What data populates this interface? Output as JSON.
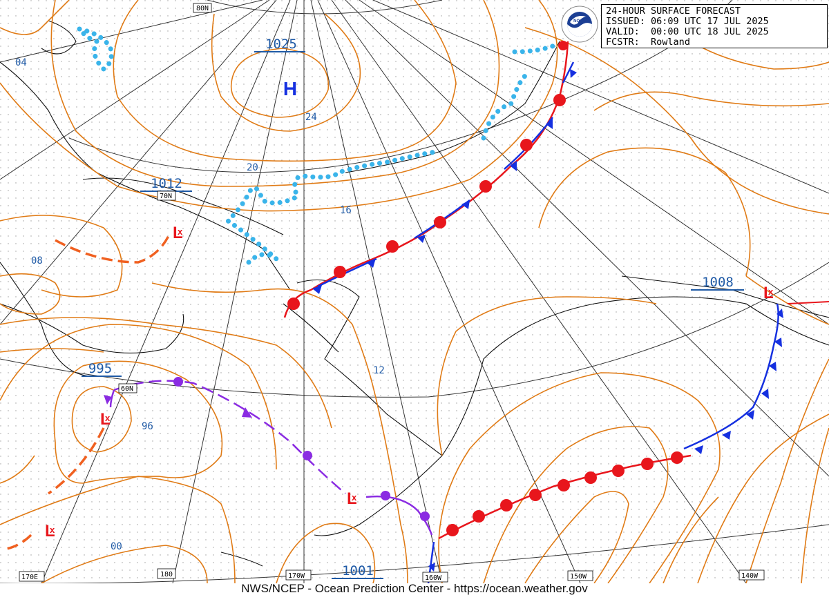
{
  "header": {
    "title": "24-HOUR SURFACE FORECAST",
    "issued_label": "ISSUED:",
    "issued": "06:09 UTC 17 JUL 2025",
    "valid_label": "VALID:",
    "valid": "00:00 UTC 18 JUL 2025",
    "forecaster_label": "FCSTR:",
    "forecaster": "Rowland"
  },
  "logo": {
    "icon": "noaa-logo-icon",
    "text": "NOAA"
  },
  "footer": {
    "credit": "NWS/NCEP - Ocean Prediction Center - https://ocean.weather.gov"
  },
  "graticule_labels": {
    "lat_80": "80N",
    "lat_70": "70N",
    "lat_60": "60N",
    "lon_170e": "170E",
    "lon_180": "180",
    "lon_170w": "170W",
    "lon_160w": "160W",
    "lon_150w": "150W",
    "lon_140w": "140W"
  },
  "pressure_centers": [
    {
      "symbol": "H",
      "value": "1025"
    },
    {
      "symbol": "L",
      "value": "1012"
    },
    {
      "symbol": "L",
      "value": "995"
    },
    {
      "symbol": "L",
      "value": "1001"
    },
    {
      "symbol": "L",
      "value": "1008"
    },
    {
      "symbol": "L",
      "value": ""
    },
    {
      "symbol": "L",
      "value": ""
    }
  ],
  "isobar_labels": [
    "04",
    "24",
    "20",
    "16",
    "08",
    "12",
    "96",
    "00"
  ],
  "colors": {
    "isobar": "#e07b16",
    "graticule": "#222222",
    "coast": "#111111",
    "ice_edge": "#3ab4ea",
    "warm_front": "#e8161c",
    "cold_front": "#1530e0",
    "occluded_front": "#8a2be2",
    "trough": "#f06020",
    "high": "#1530e0",
    "low": "#e8161c",
    "label_blue": "#1f5aa6"
  }
}
